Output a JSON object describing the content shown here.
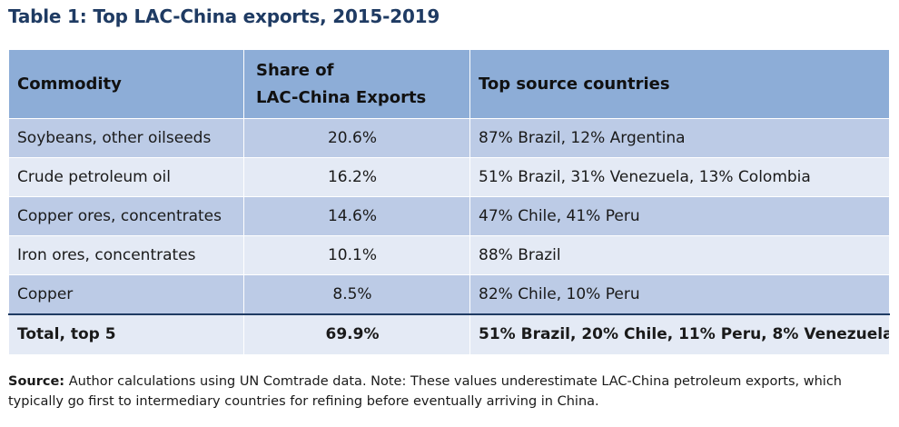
{
  "title": "Table 1: Top LAC-China exports, 2015-2019",
  "table": {
    "headers": {
      "commodity": "Commodity",
      "share_line1": "Share of",
      "share_line2": "LAC-China Exports",
      "countries": "Top source countries"
    },
    "rows": [
      {
        "commodity": "Soybeans, other oilseeds",
        "share": "20.6%",
        "countries": "87% Brazil, 12% Argentina"
      },
      {
        "commodity": "Crude petroleum oil",
        "share": "16.2%",
        "countries": "51% Brazil, 31% Venezuela, 13% Colombia"
      },
      {
        "commodity": "Copper ores, concentrates",
        "share": "14.6%",
        "countries": "47% Chile, 41% Peru"
      },
      {
        "commodity": "Iron ores, concentrates",
        "share": "10.1%",
        "countries": "88% Brazil"
      },
      {
        "commodity": "Copper",
        "share": "8.5%",
        "countries": "82% Chile, 10% Peru"
      }
    ],
    "total": {
      "commodity": "Total, top 5",
      "share": "69.9%",
      "countries": "51% Brazil, 20% Chile, 11% Peru, 8% Venezuela"
    }
  },
  "source": {
    "label": "Source:",
    "text": " Author calculations using UN Comtrade data. Note: These values underestimate LAC-China petroleum exports, which typically go first to intermediary countries for refining before eventually arriving in China."
  },
  "colors": {
    "title": "#1f3b63",
    "header_bg": "#8dadd7",
    "row_dark": "#bccbe6",
    "row_light": "#e4eaf5"
  }
}
